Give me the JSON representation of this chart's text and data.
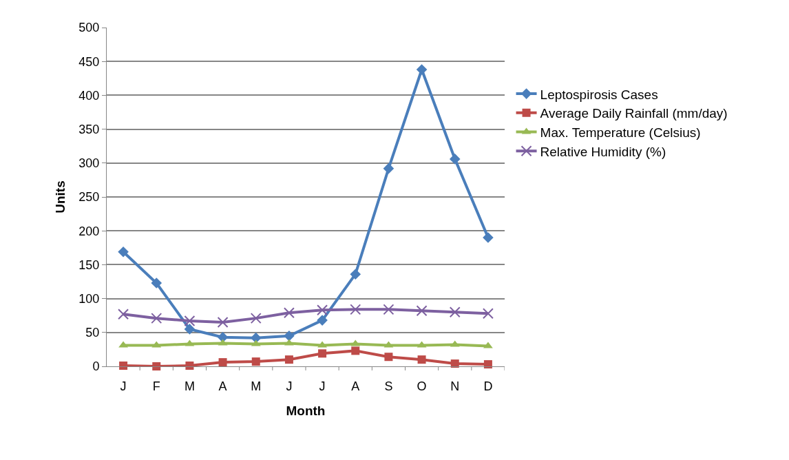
{
  "chart_data": {
    "type": "line",
    "xlabel": "Month",
    "ylabel": "Units",
    "categories": [
      "J",
      "F",
      "M",
      "A",
      "M",
      "J",
      "J",
      "A",
      "S",
      "O",
      "N",
      "D"
    ],
    "series": [
      {
        "name": "Leptospirosis Cases",
        "color": "#4a7ebb",
        "marker": "diamond",
        "values": [
          169,
          123,
          55,
          43,
          42,
          45,
          68,
          136,
          292,
          438,
          306,
          190
        ]
      },
      {
        "name": "Average Daily Rainfall (mm/day)",
        "color": "#be4b48",
        "marker": "square",
        "values": [
          1,
          0,
          1,
          6,
          7,
          10,
          19,
          23,
          14,
          10,
          4,
          3
        ]
      },
      {
        "name": "Max. Temperature (Celsius)",
        "color": "#98b954",
        "marker": "triangle",
        "values": [
          31,
          31,
          33,
          34,
          33,
          34,
          31,
          33,
          31,
          31,
          32,
          30
        ]
      },
      {
        "name": "Relative Humidity (%)",
        "color": "#7d60a0",
        "marker": "cross",
        "values": [
          77,
          71,
          67,
          65,
          71,
          79,
          83,
          84,
          84,
          82,
          80,
          78
        ]
      }
    ],
    "ylim": [
      0,
      500
    ],
    "yticks": [
      0,
      50,
      100,
      150,
      200,
      250,
      300,
      350,
      400,
      450,
      500
    ],
    "grid": "y",
    "legend": "right",
    "line_style": "solid"
  }
}
